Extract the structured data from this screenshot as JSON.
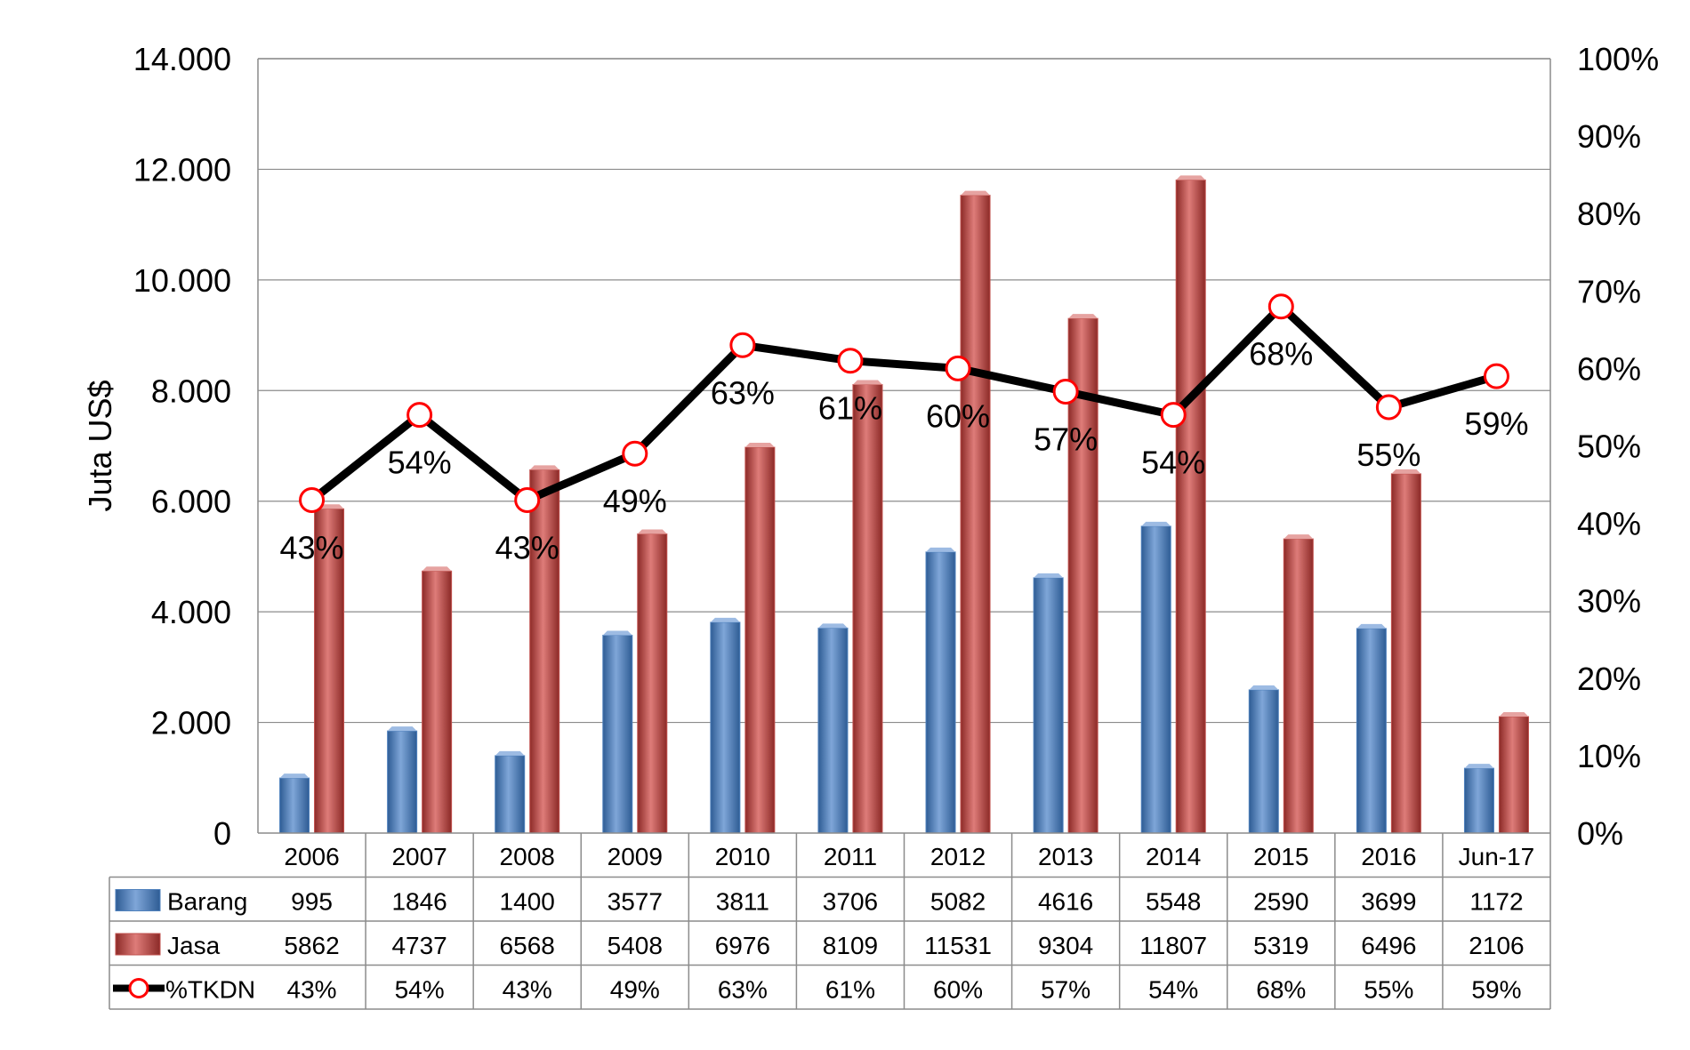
{
  "chart_data": {
    "type": "bar",
    "categories": [
      "2006",
      "2007",
      "2008",
      "2009",
      "2010",
      "2011",
      "2012",
      "2013",
      "2014",
      "2015",
      "2016",
      "Jun-17"
    ],
    "ylabel": "Juta US$",
    "ylim": [
      0,
      14000
    ],
    "y_ticks": [
      "0",
      "2.000",
      "4.000",
      "6.000",
      "8.000",
      "10.000",
      "12.000",
      "14.000"
    ],
    "y2lim": [
      0,
      100
    ],
    "y2_ticks": [
      "0%",
      "10%",
      "20%",
      "30%",
      "40%",
      "50%",
      "60%",
      "70%",
      "80%",
      "90%",
      "100%"
    ],
    "grid": true,
    "legend": "data-table",
    "series": [
      {
        "name": "Barang",
        "type": "bar",
        "color": "#4F81BD",
        "values": [
          995,
          1846,
          1400,
          3577,
          3811,
          3706,
          5082,
          4616,
          5548,
          2590,
          3699,
          1172
        ],
        "labels": [
          "995",
          "1846",
          "1400",
          "3577",
          "3811",
          "3706",
          "5082",
          "4616",
          "5548",
          "2590",
          "3699",
          "1172"
        ]
      },
      {
        "name": "Jasa",
        "type": "bar",
        "color": "#C0504D",
        "values": [
          5862,
          4737,
          6568,
          5408,
          6976,
          8109,
          11531,
          9304,
          11807,
          5319,
          6496,
          2106
        ],
        "labels": [
          "5862",
          "4737",
          "6568",
          "5408",
          "6976",
          "8109",
          "11531",
          "9304",
          "11807",
          "5319",
          "6496",
          "2106"
        ]
      },
      {
        "name": "%TKDN",
        "type": "line",
        "axis": "secondary",
        "color": "#000000",
        "marker_color": "#FF0000",
        "values": [
          43,
          54,
          43,
          49,
          63,
          61,
          60,
          57,
          54,
          68,
          55,
          59
        ],
        "labels": [
          "43%",
          "54%",
          "43%",
          "49%",
          "63%",
          "61%",
          "60%",
          "57%",
          "54%",
          "68%",
          "55%",
          "59%"
        ]
      }
    ]
  }
}
